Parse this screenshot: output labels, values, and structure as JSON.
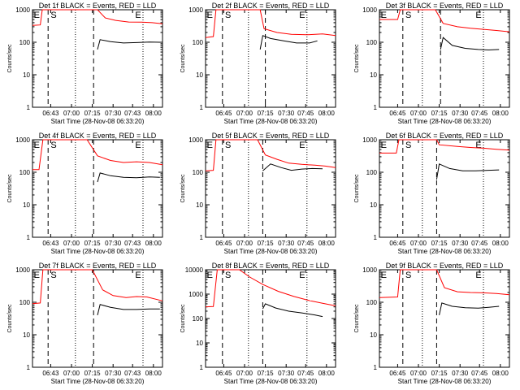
{
  "chart_data": [
    {
      "type": "line",
      "title": "Det 1f BLACK = Events, RED = LLD",
      "xlabel": "Start Time (28-Nov-08 06:33:20)",
      "ylabel": "Counts/sec",
      "yscale": "log",
      "ylim": [
        1,
        1000
      ],
      "y_ticks": [
        "1",
        "10",
        "100",
        "1000"
      ],
      "x_ticks": [
        "06:43",
        "07:00",
        "07:15",
        "07:30",
        "07:43",
        "08:00"
      ],
      "markers": [
        "E",
        "S",
        "E"
      ],
      "series": [
        {
          "color": "#ff0000",
          "points": [
            [
              0,
              330
            ],
            [
              0.06,
              340
            ],
            [
              0.075,
              1000
            ],
            [
              0.5,
              1000
            ],
            [
              0.56,
              560
            ],
            [
              0.64,
              470
            ],
            [
              0.74,
              420
            ],
            [
              0.84,
              415
            ],
            [
              0.92,
              400
            ],
            [
              1,
              370
            ]
          ]
        },
        {
          "color": "#000000",
          "points": [
            [
              0.5,
              60
            ],
            [
              0.52,
              120
            ],
            [
              0.6,
              105
            ],
            [
              0.7,
              95
            ],
            [
              0.8,
              98
            ],
            [
              0.9,
              102
            ],
            [
              0.98,
              100
            ]
          ]
        }
      ]
    },
    {
      "type": "line",
      "title": "Det 2f BLACK = Events, RED = LLD",
      "xlabel": "Start Time (28-Nov-08 06:33:20)",
      "ylabel": "Counts/sec",
      "yscale": "log",
      "ylim": [
        1,
        1000
      ],
      "y_ticks": [
        "1",
        "10",
        "100",
        "1000"
      ],
      "x_ticks": [
        "06:45",
        "07:00",
        "07:15",
        "07:30",
        "07:45",
        "08:00"
      ],
      "markers": [
        "E",
        "S",
        "E"
      ],
      "series": [
        {
          "color": "#ff0000",
          "points": [
            [
              0,
              140
            ],
            [
              0.06,
              150
            ],
            [
              0.08,
              1000
            ],
            [
              0.42,
              1000
            ],
            [
              0.45,
              260
            ],
            [
              0.55,
              200
            ],
            [
              0.66,
              175
            ],
            [
              0.78,
              170
            ],
            [
              0.9,
              180
            ],
            [
              1,
              160
            ]
          ]
        },
        {
          "color": "#000000",
          "points": [
            [
              0.42,
              60
            ],
            [
              0.44,
              160
            ],
            [
              0.5,
              130
            ],
            [
              0.6,
              110
            ],
            [
              0.7,
              95
            ],
            [
              0.8,
              95
            ],
            [
              0.86,
              110
            ]
          ]
        }
      ]
    },
    {
      "type": "line",
      "title": "Det 3f BLACK = Events, RED = LLD",
      "xlabel": "Start Time (28-Nov-08 06:33:20)",
      "ylabel": "Counts/sec",
      "yscale": "log",
      "ylim": [
        1,
        1000
      ],
      "y_ticks": [
        "1",
        "10",
        "100",
        "1000"
      ],
      "x_ticks": [
        "06:45",
        "07:00",
        "07:15",
        "07:30",
        "07:45",
        "08:00"
      ],
      "markers": [
        "E",
        "S",
        "E"
      ],
      "series": [
        {
          "color": "#ff0000",
          "points": [
            [
              0,
              500
            ],
            [
              0.14,
              500
            ],
            [
              0.16,
              1000
            ],
            [
              0.43,
              1000
            ],
            [
              0.49,
              380
            ],
            [
              0.6,
              300
            ],
            [
              0.7,
              270
            ],
            [
              0.8,
              250
            ],
            [
              0.9,
              230
            ],
            [
              1,
              210
            ]
          ]
        },
        {
          "color": "#000000",
          "points": [
            [
              0.47,
              60
            ],
            [
              0.49,
              140
            ],
            [
              0.56,
              80
            ],
            [
              0.66,
              65
            ],
            [
              0.76,
              60
            ],
            [
              0.84,
              58
            ],
            [
              0.92,
              60
            ]
          ]
        }
      ]
    },
    {
      "type": "line",
      "title": "Det 4f BLACK = Events, RED = LLD",
      "xlabel": "Start Time (28-Nov-08 06:33:20)",
      "ylabel": "Counts/sec",
      "yscale": "log",
      "ylim": [
        1,
        1000
      ],
      "y_ticks": [
        "1",
        "10",
        "100",
        "1000"
      ],
      "x_ticks": [
        "06:43",
        "07:00",
        "07:15",
        "07:30",
        "07:43",
        "08:00"
      ],
      "markers": [
        "E",
        "S",
        "E"
      ],
      "series": [
        {
          "color": "#ff0000",
          "points": [
            [
              0,
              120
            ],
            [
              0.05,
              120
            ],
            [
              0.08,
              1000
            ],
            [
              0.42,
              1000
            ],
            [
              0.5,
              320
            ],
            [
              0.6,
              230
            ],
            [
              0.7,
              200
            ],
            [
              0.8,
              210
            ],
            [
              0.9,
              200
            ],
            [
              1,
              170
            ]
          ]
        },
        {
          "color": "#000000",
          "points": [
            [
              0.5,
              50
            ],
            [
              0.52,
              95
            ],
            [
              0.6,
              78
            ],
            [
              0.7,
              70
            ],
            [
              0.8,
              68
            ],
            [
              0.9,
              72
            ],
            [
              0.98,
              70
            ]
          ]
        }
      ]
    },
    {
      "type": "line",
      "title": "Det 5f BLACK = Events, RED = LLD",
      "xlabel": "Start Time (28-Nov-08 06:33:20)",
      "ylabel": "Counts/sec",
      "yscale": "log",
      "ylim": [
        1,
        1000
      ],
      "y_ticks": [
        "1",
        "10",
        "100",
        "1000"
      ],
      "x_ticks": [
        "06:45",
        "07:00",
        "07:15",
        "07:30",
        "07:45",
        "08:00"
      ],
      "markers": [
        "E",
        "S",
        "E"
      ],
      "series": [
        {
          "color": "#ff0000",
          "points": [
            [
              0,
              110
            ],
            [
              0.06,
              115
            ],
            [
              0.08,
              1000
            ],
            [
              0.4,
              1000
            ],
            [
              0.46,
              340
            ],
            [
              0.55,
              250
            ],
            [
              0.64,
              190
            ],
            [
              0.74,
              175
            ],
            [
              0.84,
              165
            ],
            [
              0.92,
              155
            ],
            [
              1,
              140
            ]
          ]
        },
        {
          "color": "#000000",
          "points": [
            [
              0.44,
              110
            ],
            [
              0.5,
              180
            ],
            [
              0.58,
              140
            ],
            [
              0.66,
              115
            ],
            [
              0.74,
              125
            ],
            [
              0.82,
              130
            ],
            [
              0.9,
              128
            ]
          ]
        }
      ]
    },
    {
      "type": "line",
      "title": "Det 6f BLACK = Events, RED = LLD",
      "xlabel": "Start Time (28-Nov-08 06:33:20)",
      "ylabel": "Counts/sec",
      "yscale": "log",
      "ylim": [
        1,
        1000
      ],
      "y_ticks": [
        "1",
        "10",
        "100",
        "1000"
      ],
      "x_ticks": [
        "06:45",
        "07:00",
        "07:15",
        "07:30",
        "07:45",
        "08:00"
      ],
      "markers": [
        "E",
        "S",
        "E"
      ],
      "series": [
        {
          "color": "#ff0000",
          "points": [
            [
              0,
              390
            ],
            [
              0.13,
              390
            ],
            [
              0.15,
              1000
            ],
            [
              0.44,
              1000
            ],
            [
              0.46,
              700
            ],
            [
              0.6,
              620
            ],
            [
              0.7,
              580
            ],
            [
              0.8,
              550
            ],
            [
              0.9,
              510
            ],
            [
              1,
              480
            ]
          ]
        },
        {
          "color": "#000000",
          "points": [
            [
              0.44,
              60
            ],
            [
              0.46,
              180
            ],
            [
              0.54,
              130
            ],
            [
              0.64,
              110
            ],
            [
              0.74,
              110
            ],
            [
              0.84,
              115
            ],
            [
              0.92,
              118
            ]
          ]
        }
      ]
    },
    {
      "type": "line",
      "title": "Det 7f BLACK = Events, RED = LLD",
      "xlabel": "Start Time (28-Nov-08 06:33:20)",
      "ylabel": "Counts/sec",
      "yscale": "log",
      "ylim": [
        1,
        1000
      ],
      "y_ticks": [
        "1",
        "10",
        "100",
        "1000"
      ],
      "x_ticks": [
        "06:43",
        "07:00",
        "07:15",
        "07:30",
        "07:43",
        "08:00"
      ],
      "markers": [
        "E",
        "S",
        "E"
      ],
      "series": [
        {
          "color": "#ff0000",
          "points": [
            [
              0,
              90
            ],
            [
              0.06,
              95
            ],
            [
              0.08,
              1000
            ],
            [
              0.46,
              1000
            ],
            [
              0.54,
              240
            ],
            [
              0.62,
              160
            ],
            [
              0.72,
              140
            ],
            [
              0.8,
              150
            ],
            [
              0.88,
              145
            ],
            [
              1,
              110
            ]
          ]
        },
        {
          "color": "#000000",
          "points": [
            [
              0.5,
              40
            ],
            [
              0.52,
              85
            ],
            [
              0.6,
              70
            ],
            [
              0.7,
              60
            ],
            [
              0.8,
              60
            ],
            [
              0.9,
              62
            ],
            [
              0.98,
              62
            ]
          ]
        }
      ]
    },
    {
      "type": "line",
      "title": "Det 8f BLACK = Events, RED = LLD",
      "xlabel": "Start Time (28-Nov-08 06:33:20)",
      "ylabel": "Counts/sec",
      "yscale": "log",
      "ylim": [
        1,
        10000
      ],
      "y_ticks": [
        "1",
        "10",
        "100",
        "1000",
        "10000"
      ],
      "x_ticks": [
        "06:45",
        "07:00",
        "07:15",
        "07:30",
        "07:45",
        "08:00"
      ],
      "markers": [
        "E",
        "S",
        "E"
      ],
      "series": [
        {
          "color": "#ff0000",
          "points": [
            [
              0,
              300
            ],
            [
              0.06,
              310
            ],
            [
              0.09,
              10000
            ],
            [
              0.26,
              10000
            ],
            [
              0.34,
              5000
            ],
            [
              0.44,
              2500
            ],
            [
              0.56,
              1300
            ],
            [
              0.68,
              800
            ],
            [
              0.8,
              540
            ],
            [
              0.9,
              420
            ],
            [
              1,
              330
            ]
          ]
        },
        {
          "color": "#000000",
          "points": [
            [
              0.44,
              250
            ],
            [
              0.46,
              400
            ],
            [
              0.54,
              270
            ],
            [
              0.64,
              200
            ],
            [
              0.74,
              170
            ],
            [
              0.84,
              140
            ],
            [
              0.9,
              120
            ]
          ]
        }
      ]
    },
    {
      "type": "line",
      "title": "Det 9f BLACK = Events, RED = LLD",
      "xlabel": "Start Time (28-Nov-08 06:33:20)",
      "ylabel": "Counts/sec",
      "yscale": "log",
      "ylim": [
        1,
        1000
      ],
      "y_ticks": [
        "1",
        "10",
        "100",
        "1000"
      ],
      "x_ticks": [
        "06:45",
        "07:00",
        "07:15",
        "07:30",
        "07:45",
        "08:00"
      ],
      "markers": [
        "E",
        "S",
        "E"
      ],
      "series": [
        {
          "color": "#ff0000",
          "points": [
            [
              0,
              140
            ],
            [
              0.14,
              145
            ],
            [
              0.16,
              1000
            ],
            [
              0.44,
              1000
            ],
            [
              0.5,
              280
            ],
            [
              0.6,
              210
            ],
            [
              0.7,
              200
            ],
            [
              0.8,
              195
            ],
            [
              0.9,
              185
            ],
            [
              1,
              170
            ]
          ]
        },
        {
          "color": "#000000",
          "points": [
            [
              0.46,
              40
            ],
            [
              0.48,
              95
            ],
            [
              0.56,
              75
            ],
            [
              0.66,
              68
            ],
            [
              0.76,
              66
            ],
            [
              0.84,
              70
            ],
            [
              0.92,
              75
            ]
          ]
        }
      ]
    }
  ]
}
